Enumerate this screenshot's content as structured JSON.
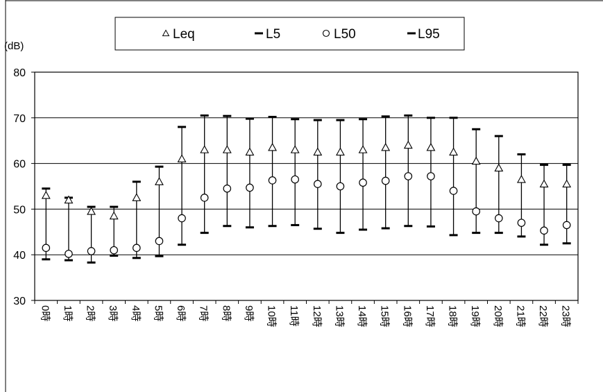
{
  "chart_data": {
    "type": "scatter",
    "yunit": "(dB)",
    "ylim": [
      30,
      80
    ],
    "yticks": [
      30,
      40,
      50,
      60,
      70,
      80
    ],
    "grid": true,
    "legend_position": "top",
    "categories": [
      "0時",
      "1時",
      "2時",
      "3時",
      "4時",
      "5時",
      "6時",
      "7時",
      "8時",
      "9時",
      "10時",
      "11時",
      "12時",
      "13時",
      "14時",
      "15時",
      "16時",
      "17時",
      "18時",
      "19時",
      "20時",
      "21時",
      "22時",
      "23時"
    ],
    "series": [
      {
        "name": "Leq",
        "marker": "triangle",
        "values": [
          53,
          52,
          49.5,
          48.5,
          52.5,
          56,
          61,
          63,
          63,
          62.5,
          63.5,
          63,
          62.5,
          62.5,
          63,
          63.5,
          64,
          63.5,
          62.5,
          60.5,
          59,
          56.5,
          55.5,
          55.5
        ]
      },
      {
        "name": "L5",
        "marker": "dash",
        "values": [
          54.5,
          52.5,
          50.5,
          50.5,
          56,
          59.3,
          68,
          70.5,
          70.4,
          69.8,
          70.2,
          69.7,
          69.5,
          69.5,
          69.7,
          70.3,
          70.5,
          70,
          70,
          67.5,
          66,
          62,
          59.7,
          59.7
        ]
      },
      {
        "name": "L50",
        "marker": "circle",
        "values": [
          41.5,
          40.2,
          40.8,
          41,
          41.5,
          43,
          48,
          52.5,
          54.5,
          54.7,
          56.3,
          56.5,
          55.5,
          55,
          55.8,
          56.2,
          57.2,
          57.2,
          54,
          49.5,
          48,
          47,
          45.3,
          46.5
        ]
      },
      {
        "name": "L95",
        "marker": "dash",
        "values": [
          39,
          38.8,
          38.3,
          39.8,
          39.3,
          39.7,
          42.2,
          44.8,
          46.3,
          46,
          46.3,
          46.5,
          45.7,
          44.8,
          45.5,
          45.8,
          46.3,
          46.2,
          44.3,
          44.8,
          44.8,
          44,
          42.2,
          42.5
        ]
      }
    ]
  }
}
